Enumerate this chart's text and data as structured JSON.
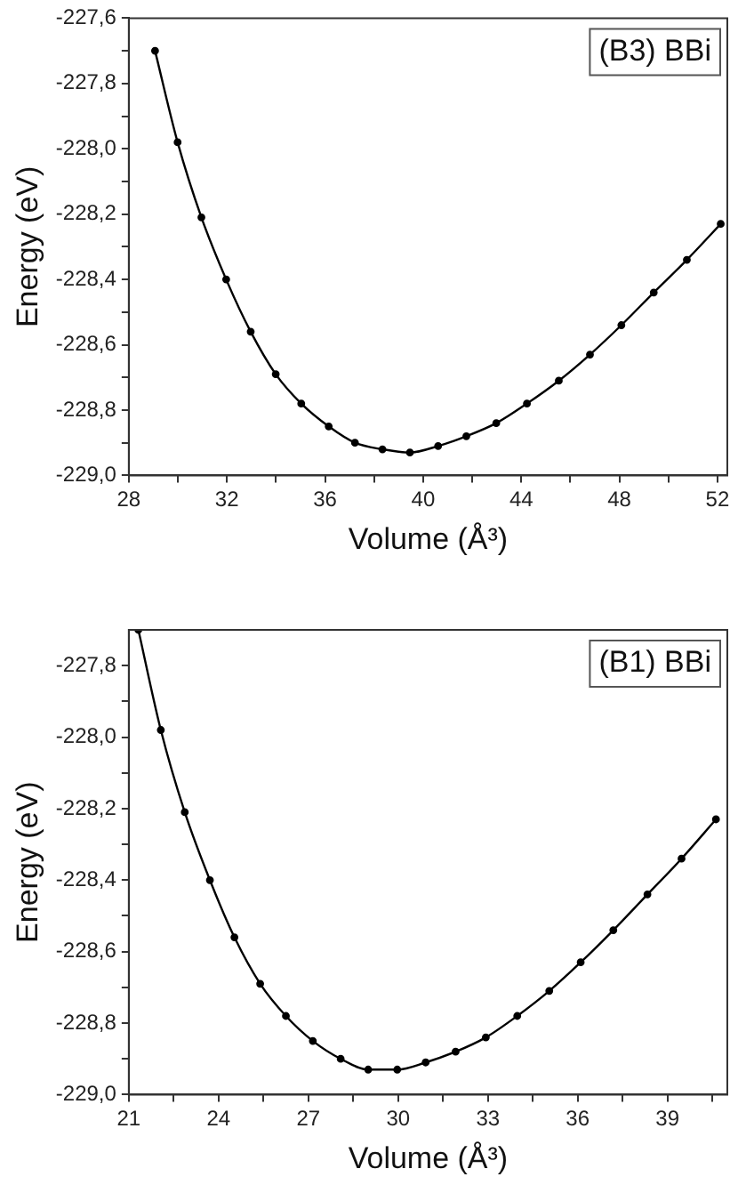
{
  "chart_data": [
    {
      "type": "line",
      "xlabel": "Volume (Å³)",
      "ylabel": "Energy (eV)",
      "annotations": [
        "(B3) BBi"
      ],
      "marker": "circle",
      "line_style": "solid",
      "color": "#000000",
      "x": [
        29.07,
        29.99,
        30.96,
        31.97,
        32.97,
        33.99,
        35.03,
        36.15,
        37.22,
        38.34,
        39.46,
        40.61,
        41.76,
        42.98,
        44.23,
        45.53,
        46.8,
        48.08,
        49.4,
        50.75,
        52.13
      ],
      "values": [
        -227.7,
        -227.98,
        -228.21,
        -228.4,
        -228.56,
        -228.69,
        -228.78,
        -228.85,
        -228.9,
        -228.92,
        -228.93,
        -228.91,
        -228.88,
        -228.84,
        -228.78,
        -228.71,
        -228.63,
        -228.54,
        -228.44,
        -228.34,
        -228.23
      ],
      "xlim": [
        28,
        52.4
      ],
      "xticks": [
        28,
        {
          "value": 30,
          "label": null
        },
        32,
        {
          "value": 34,
          "label": null
        },
        36,
        {
          "value": 38,
          "label": null
        },
        40,
        {
          "value": 42,
          "label": null
        },
        44,
        {
          "value": 46,
          "label": null
        },
        48,
        {
          "value": 50,
          "label": null
        },
        52
      ],
      "ylim": [
        -229.0,
        -227.6
      ],
      "yticks": [
        {
          "value": -229.0,
          "label": "-229,0"
        },
        {
          "value": -228.9,
          "label": null
        },
        {
          "value": -228.8,
          "label": "-228,8"
        },
        {
          "value": -228.7,
          "label": null
        },
        {
          "value": -228.6,
          "label": "-228,6"
        },
        {
          "value": -228.5,
          "label": null
        },
        {
          "value": -228.4,
          "label": "-228,4"
        },
        {
          "value": -228.3,
          "label": null
        },
        {
          "value": -228.2,
          "label": "-228,2"
        },
        {
          "value": -228.1,
          "label": null
        },
        {
          "value": -228.0,
          "label": "-228,0"
        },
        {
          "value": -227.9,
          "label": null
        },
        {
          "value": -227.8,
          "label": "-227,8"
        },
        {
          "value": -227.7,
          "label": null
        },
        {
          "value": -227.6,
          "label": "-227,6"
        }
      ]
    },
    {
      "type": "line",
      "xlabel": "Volume (Å³)",
      "ylabel": "Energy (eV)",
      "annotations": [
        "(B1) BBi"
      ],
      "marker": "circle",
      "line_style": "solid",
      "color": "#000000",
      "x": [
        21.32,
        22.07,
        22.87,
        23.71,
        24.53,
        25.39,
        26.25,
        27.15,
        28.08,
        29.0,
        29.97,
        30.92,
        31.92,
        32.93,
        33.98,
        35.05,
        36.1,
        37.19,
        38.33,
        39.47,
        40.62
      ],
      "values": [
        -227.7,
        -227.98,
        -228.21,
        -228.4,
        -228.56,
        -228.69,
        -228.78,
        -228.85,
        -228.9,
        -228.93,
        -228.93,
        -228.91,
        -228.88,
        -228.84,
        -228.78,
        -228.71,
        -228.63,
        -228.54,
        -228.44,
        -228.34,
        -228.23
      ],
      "xlim": [
        21,
        41
      ],
      "xticks": [
        21,
        {
          "value": 22.5,
          "label": null
        },
        24,
        {
          "value": 25.5,
          "label": null
        },
        27,
        {
          "value": 28.5,
          "label": null
        },
        30,
        {
          "value": 31.5,
          "label": null
        },
        33,
        {
          "value": 34.5,
          "label": null
        },
        36,
        {
          "value": 37.5,
          "label": null
        },
        39,
        {
          "value": 40.5,
          "label": null
        }
      ],
      "ylim": [
        -229.0,
        -227.7
      ],
      "yticks": [
        {
          "value": -229.0,
          "label": "-229,0"
        },
        {
          "value": -228.9,
          "label": null
        },
        {
          "value": -228.8,
          "label": "-228,8"
        },
        {
          "value": -228.7,
          "label": null
        },
        {
          "value": -228.6,
          "label": "-228,6"
        },
        {
          "value": -228.5,
          "label": null
        },
        {
          "value": -228.4,
          "label": "-228,4"
        },
        {
          "value": -228.3,
          "label": null
        },
        {
          "value": -228.2,
          "label": "-228,2"
        },
        {
          "value": -228.1,
          "label": null
        },
        {
          "value": -228.0,
          "label": "-228,0"
        },
        {
          "value": -227.9,
          "label": null
        },
        {
          "value": -227.8,
          "label": "-227,8"
        }
      ]
    }
  ]
}
